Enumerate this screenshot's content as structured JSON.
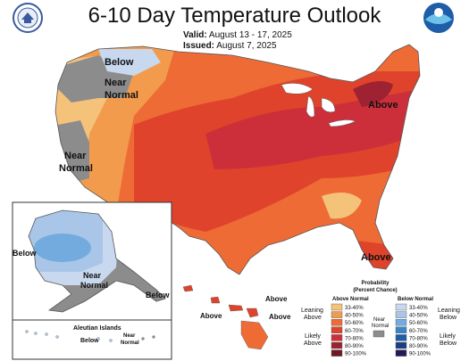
{
  "title": "6-10 Day Temperature Outlook",
  "valid_label": "Valid:",
  "valid_value": "August 13 - 17, 2025",
  "issued_label": "Issued:",
  "issued_value": "August 7, 2025",
  "logos": {
    "left": "commerce-seal",
    "right": "noaa-logo"
  },
  "map_labels": {
    "below_nw": "Below",
    "near_normal_nw_1": "Near",
    "near_normal_nw_2": "Normal",
    "near_normal_w_1": "Near",
    "near_normal_w_2": "Normal",
    "above_ne": "Above",
    "above_fl": "Above",
    "alaska_below": "Below",
    "alaska_near_1": "Near",
    "alaska_near_2": "Normal",
    "alaska_above": "Below",
    "hawaii_above_1": "Above",
    "hawaii_above_2": "Above",
    "hawaii_above_3": "Above",
    "aleutian_title": "Aleutian Islands",
    "aleutian_below": "Below",
    "aleutian_near_1": "Near",
    "aleutian_near_2": "Normal"
  },
  "legend": {
    "title_1": "Probability",
    "title_2": "(Percent Chance)",
    "above_header": "Above Normal",
    "below_header": "Below Normal",
    "near_normal_1": "Near",
    "near_normal_2": "Normal",
    "leaning_above_1": "Leaning",
    "leaning_above_2": "Above",
    "likely_above_1": "Likely",
    "likely_above_2": "Above",
    "leaning_below_1": "Leaning",
    "leaning_below_2": "Below",
    "likely_below_1": "Likely",
    "likely_below_2": "Below",
    "above_ranges": [
      "33-40%",
      "40-50%",
      "50-60%",
      "60-70%",
      "70-80%",
      "80-90%",
      "90-100%"
    ],
    "below_ranges": [
      "33-40%",
      "40-50%",
      "50-60%",
      "60-70%",
      "70-80%",
      "80-90%",
      "90-100%"
    ],
    "above_colors": [
      "#f5c27a",
      "#f29b4c",
      "#ee6b35",
      "#e0432b",
      "#cc2f3a",
      "#9e2232",
      "#6e1a24"
    ],
    "below_colors": [
      "#c8d8ef",
      "#a9c6e8",
      "#74abde",
      "#3b86c9",
      "#1e5ea8",
      "#1b3f80",
      "#241a55"
    ],
    "near_color": "#8c8c8c"
  }
}
